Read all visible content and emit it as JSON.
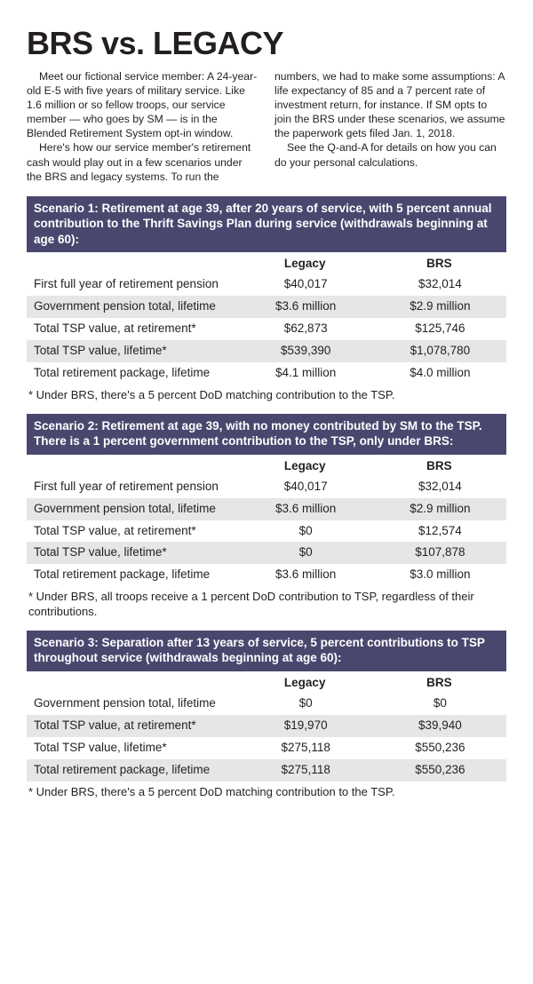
{
  "title": "BRS vs. LEGACY",
  "intro": {
    "p1": "Meet our fictional service member: A 24-year-old E-5 with five years of military service. Like 1.6 million or so fellow troops, our service member — who goes by SM — is in the Blended Retirement System opt-in window.",
    "p2": "Here's how our service member's retirement cash would play out in a few scenarios under the BRS and legacy systems. To run the numbers, we had to make some assumptions: A life expectancy of 85 and a 7 percent rate of investment return, for instance. If SM opts to join the BRS under these scenarios, we assume the paperwork gets filed Jan. 1, 2018.",
    "p3": "See the Q-and-A for details on how you can do your personal calculations."
  },
  "columns": {
    "col1": "Legacy",
    "col2": "BRS"
  },
  "scenarios": [
    {
      "heading": "Scenario 1: Retirement at age 39, after 20 years of service, with 5 percent annual contribution to the Thrift Savings Plan during service (withdrawals beginning at age 60):",
      "rows": [
        {
          "label": "First full year of retirement pension",
          "legacy": "$40,017",
          "brs": "$32,014"
        },
        {
          "label": "Government pension total, lifetime",
          "legacy": "$3.6 million",
          "brs": "$2.9 million"
        },
        {
          "label": "Total TSP value, at retirement*",
          "legacy": "$62,873",
          "brs": "$125,746"
        },
        {
          "label": "Total TSP value, lifetime*",
          "legacy": "$539,390",
          "brs": "$1,078,780"
        },
        {
          "label": "Total retirement package, lifetime",
          "legacy": "$4.1 million",
          "brs": "$4.0 million"
        }
      ],
      "footnote": "* Under BRS, there's a 5 percent DoD matching contribution to the TSP."
    },
    {
      "heading": "Scenario 2: Retirement at age 39, with no money contributed by SM to the TSP. There is a 1 percent government contribution to the TSP, only under BRS:",
      "rows": [
        {
          "label": "First full year of retirement pension",
          "legacy": "$40,017",
          "brs": "$32,014"
        },
        {
          "label": "Government pension total, lifetime",
          "legacy": "$3.6 million",
          "brs": "$2.9 million"
        },
        {
          "label": "Total TSP value, at retirement*",
          "legacy": "$0",
          "brs": "$12,574"
        },
        {
          "label": "Total TSP value, lifetime*",
          "legacy": "$0",
          "brs": "$107,878"
        },
        {
          "label": "Total retirement package, lifetime",
          "legacy": "$3.6 million",
          "brs": "$3.0 million"
        }
      ],
      "footnote": "* Under BRS, all troops receive a 1 percent DoD contribution to TSP, regardless of their contributions."
    },
    {
      "heading": "Scenario 3: Separation after 13 years of service, 5 percent contributions to TSP throughout service (withdrawals beginning at age 60):",
      "rows": [
        {
          "label": "Government pension total, lifetime",
          "legacy": "$0",
          "brs": "$0"
        },
        {
          "label": "Total TSP value, at retirement*",
          "legacy": "$19,970",
          "brs": "$39,940"
        },
        {
          "label": "Total TSP value, lifetime*",
          "legacy": "$275,118",
          "brs": "$550,236"
        },
        {
          "label": "Total retirement package, lifetime",
          "legacy": "$275,118",
          "brs": "$550,236"
        }
      ],
      "footnote": "* Under BRS, there's a 5 percent DoD matching contribution to the TSP."
    }
  ],
  "style": {
    "header_bg": "#4a476f",
    "row_alt_bg": "#e6e6e6",
    "page_bg": "#ffffff",
    "text_color": "#231f20",
    "title_fontsize": 36,
    "body_fontsize": 12.2,
    "table_fontsize": 13.5
  }
}
